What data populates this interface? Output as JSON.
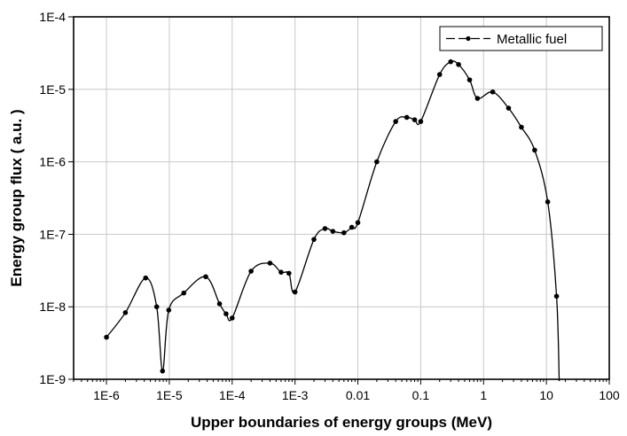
{
  "chart_data": {
    "type": "line",
    "xlabel": "Upper boundaries of energy groups (MeV)",
    "ylabel": "Energy group flux ( a.u. )",
    "xscale": "log",
    "yscale": "log",
    "xlim": [
      3e-07,
      100
    ],
    "ylim": [
      1e-09,
      0.0001
    ],
    "grid": true,
    "legend_position": "top-right",
    "x_ticks": [
      1e-06,
      1e-05,
      0.0001,
      0.001,
      0.01,
      0.1,
      1,
      10,
      100
    ],
    "x_tick_labels": [
      "1E-6",
      "1E-5",
      "1E-4",
      "1E-3",
      "0.01",
      "0.1",
      "1",
      "10",
      "100"
    ],
    "y_ticks": [
      1e-09,
      1e-08,
      1e-07,
      1e-06,
      1e-05,
      0.0001
    ],
    "y_tick_labels": [
      "1E-9",
      "1E-8",
      "1E-7",
      "1E-6",
      "1E-5",
      "1E-4"
    ],
    "line_color": "#000000",
    "series": [
      {
        "name": "Metallic fuel",
        "x": [
          1e-06,
          2e-06,
          4.2e-06,
          6.3e-06,
          7.8e-06,
          9.8e-06,
          1.7e-05,
          3.8e-05,
          6.3e-05,
          8e-05,
          0.0001,
          0.0002,
          0.0004,
          0.0006,
          0.0008,
          0.001,
          0.002,
          0.003,
          0.004,
          0.006,
          0.008,
          0.01,
          0.02,
          0.04,
          0.06,
          0.08,
          0.1,
          0.2,
          0.3,
          0.4,
          0.6,
          0.8,
          1.4,
          2.5,
          4,
          6.5,
          10.5,
          14.5
        ],
        "y": [
          3.8e-09,
          8.3e-09,
          2.5e-08,
          1e-08,
          1.3e-09,
          9e-09,
          1.55e-08,
          2.6e-08,
          1.1e-08,
          8e-09,
          7e-09,
          3.1e-08,
          4e-08,
          3e-08,
          2.9e-08,
          1.6e-08,
          8.5e-08,
          1.2e-07,
          1.1e-07,
          1.05e-07,
          1.25e-07,
          1.45e-07,
          1e-06,
          3.6e-06,
          4.1e-06,
          3.8e-06,
          3.6e-06,
          1.6e-05,
          2.4e-05,
          2.2e-05,
          1.35e-05,
          7.5e-06,
          9.2e-06,
          5.5e-06,
          3e-06,
          1.45e-06,
          2.8e-07,
          1.4e-08
        ]
      }
    ]
  }
}
